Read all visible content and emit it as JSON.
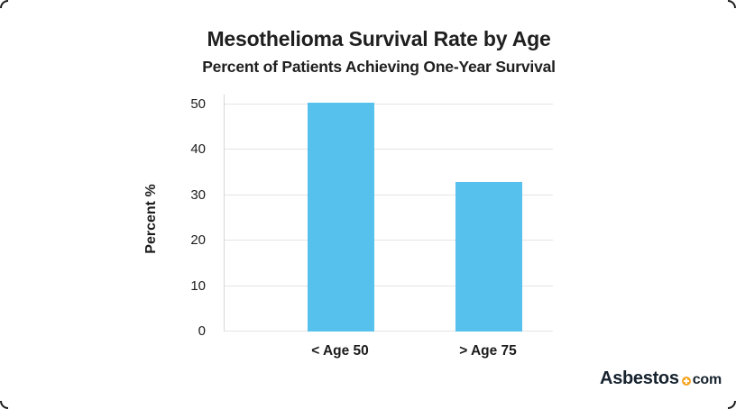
{
  "chart_data": {
    "type": "bar",
    "title": "Mesothelioma Survival Rate by Age",
    "subtitle": "Percent of Patients Achieving One-Year Survival",
    "ylabel": "Percent %",
    "xlabel": "",
    "categories": [
      "< Age 50",
      "> Age 75"
    ],
    "values": [
      50.4,
      32.9
    ],
    "yticks": [
      0,
      10,
      20,
      30,
      40,
      50
    ],
    "ylim": [
      0,
      52.2
    ],
    "grid": true,
    "legend": "none",
    "bar_color": "#57C1EE",
    "gridline_color": "#e4e4e4",
    "axis_line_color": "#d7d7d7",
    "text_color": "#1c1c1c"
  },
  "logo": {
    "brand": "Asbestos",
    "tld": "com",
    "dot_icon": "plus-circle",
    "dot_color": "#F5A623",
    "text_color": "#16222E"
  }
}
